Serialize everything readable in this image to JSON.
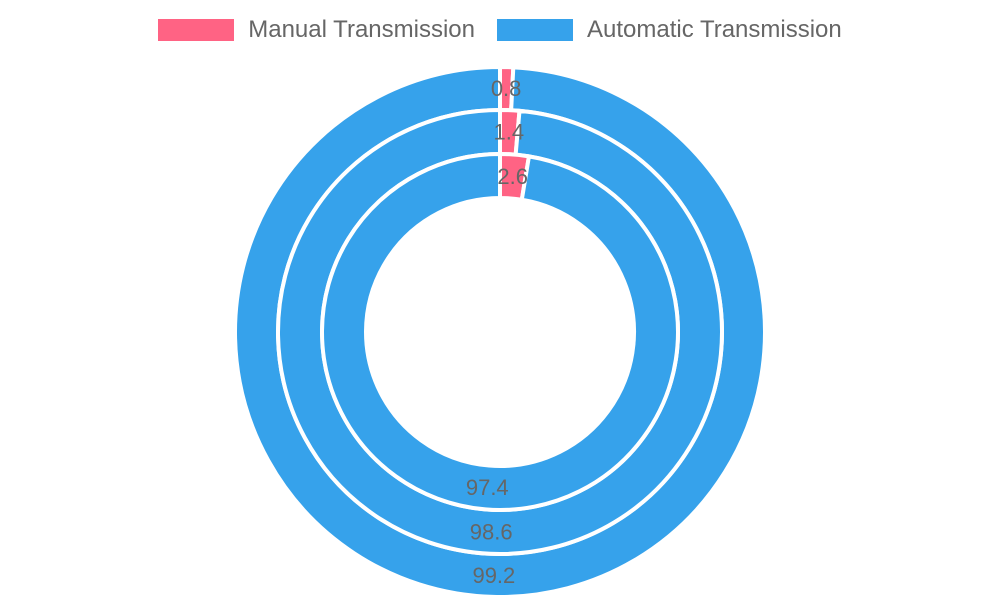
{
  "chart_data": {
    "type": "pie",
    "subtype": "nested-doughnut",
    "title": "",
    "categories": [
      "Manual Transmission",
      "Automatic Transmission"
    ],
    "colors": [
      "#ff6384",
      "#36a2eb"
    ],
    "legend_position": "top",
    "series": [
      {
        "values": [
          0.8,
          99.2
        ],
        "labels": [
          "0.8",
          "99.2"
        ]
      },
      {
        "values": [
          1.4,
          98.6
        ],
        "labels": [
          "1.4",
          "98.6"
        ]
      },
      {
        "values": [
          2.6,
          97.4
        ],
        "labels": [
          "2.6",
          "97.4"
        ]
      }
    ]
  }
}
